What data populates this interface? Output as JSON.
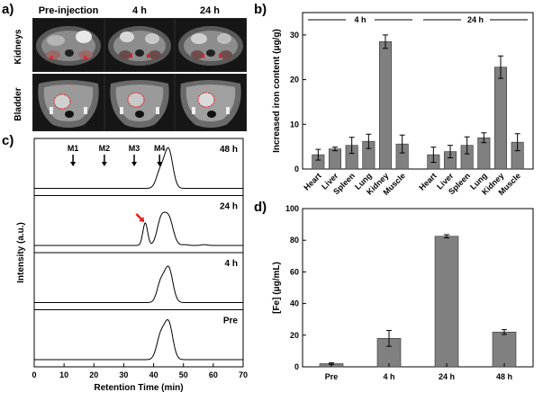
{
  "panel_a": {
    "letter": "a)",
    "columns": [
      "Pre-injection",
      "4 h",
      "24 h"
    ],
    "rows": [
      "Kidneys",
      "Bladder"
    ]
  },
  "panel_letters": {
    "b": "b)",
    "c": "c)",
    "d": "d)"
  },
  "colors": {
    "bar": "#808080",
    "arrow_red": "#e02020",
    "mri_bg": "#1a1a1a"
  },
  "chart_data": [
    {
      "id": "b",
      "type": "bar",
      "ylabel": "Increased iron content (μg/g)",
      "ylim": [
        0,
        35
      ],
      "yticks": [
        0,
        10,
        20,
        30
      ],
      "groups": [
        {
          "label": "4 h",
          "categories": [
            "Heart",
            "Liver",
            "Spleen",
            "Lung",
            "Kidney",
            "Muscle"
          ],
          "values": [
            3.2,
            4.5,
            5.3,
            6.2,
            28.5,
            5.6
          ],
          "errors": [
            1.2,
            0.4,
            1.8,
            1.6,
            1.5,
            2.0
          ]
        },
        {
          "label": "24 h",
          "categories": [
            "Heart",
            "Liver",
            "Spleen",
            "Lung",
            "Kidney",
            "Muscle"
          ],
          "values": [
            3.2,
            3.9,
            5.3,
            7.0,
            22.8,
            6.0
          ],
          "errors": [
            1.7,
            1.4,
            1.9,
            1.1,
            2.5,
            1.9
          ]
        }
      ]
    },
    {
      "id": "c",
      "type": "line",
      "xlabel": "Retention Time (min)",
      "ylabel": "Intensity (a.u.)",
      "xlim": [
        0,
        70
      ],
      "xticks": [
        0,
        10,
        20,
        30,
        40,
        50,
        60,
        70
      ],
      "markers": [
        {
          "label": "M1",
          "x": 13
        },
        {
          "label": "M2",
          "x": 23.5
        },
        {
          "label": "M3",
          "x": 33.5
        },
        {
          "label": "M4",
          "x": 42
        }
      ],
      "series": [
        {
          "name": "48 h",
          "peaks": [
            {
              "center": 42.2,
              "height": 0.4,
              "width": 1.3
            },
            {
              "center": 45.0,
              "height": 0.95,
              "width": 1.4
            }
          ]
        },
        {
          "name": "24 h",
          "peaks": [
            {
              "center": 37.2,
              "height": 0.55,
              "width": 0.8
            },
            {
              "center": 42.4,
              "height": 0.57,
              "width": 1.3
            },
            {
              "center": 45.0,
              "height": 0.68,
              "width": 1.5
            },
            {
              "center": 50.5,
              "height": 0.02,
              "width": 1.0
            },
            {
              "center": 57.0,
              "height": 0.02,
              "width": 1.0
            }
          ],
          "arrow_at": 37.2
        },
        {
          "name": "4 h",
          "peaks": [
            {
              "center": 42.3,
              "height": 0.45,
              "width": 1.2
            },
            {
              "center": 45.0,
              "height": 0.85,
              "width": 1.4
            }
          ]
        },
        {
          "name": "Pre",
          "peaks": [
            {
              "center": 42.3,
              "height": 0.55,
              "width": 1.3
            },
            {
              "center": 45.0,
              "height": 0.9,
              "width": 1.4
            }
          ]
        }
      ]
    },
    {
      "id": "d",
      "type": "bar",
      "ylabel": "[Fe] (μg/mL)",
      "ylim": [
        0,
        100
      ],
      "yticks": [
        0,
        20,
        40,
        60,
        80,
        100
      ],
      "categories": [
        "Pre",
        "4 h",
        "24 h",
        "48 h"
      ],
      "values": [
        2.0,
        18.0,
        82.5,
        22.0
      ],
      "errors": [
        0.5,
        5.0,
        1.0,
        1.5
      ]
    }
  ]
}
